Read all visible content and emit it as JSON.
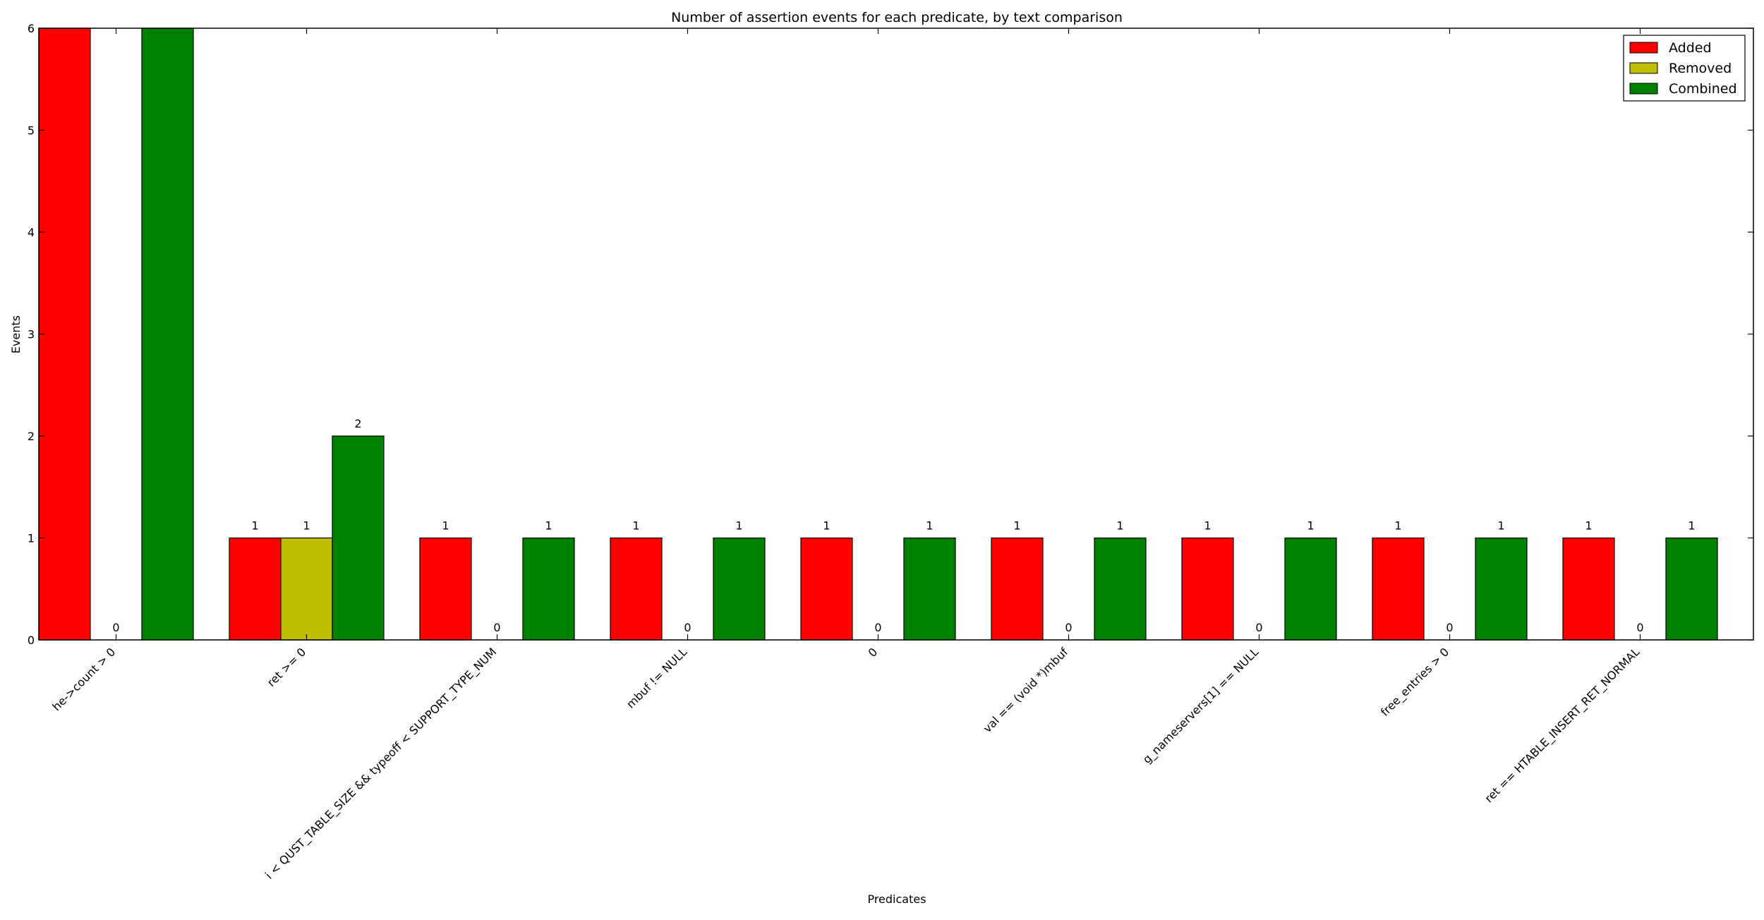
{
  "chart_data": {
    "type": "bar",
    "title": "Number of assertion events for each predicate, by text comparison",
    "xlabel": "Predicates",
    "ylabel": "Events",
    "ylim": [
      0,
      6
    ],
    "yticks": [
      0,
      1,
      2,
      3,
      4,
      5,
      6
    ],
    "categories": [
      "he->count > 0",
      "ret >= 0",
      "i < QUST_TABLE_SIZE && typeoff < SUPPORT_TYPE_NUM",
      "mbuf != NULL",
      "0",
      "val == (void *)mbuf",
      "g_nameservers[1] == NULL",
      "free_entries > 0",
      "ret == HTABLE_INSERT_RET_NORMAL"
    ],
    "series": [
      {
        "name": "Added",
        "color": "#ff0000",
        "values": [
          6,
          1,
          1,
          1,
          1,
          1,
          1,
          1,
          1
        ]
      },
      {
        "name": "Removed",
        "color": "#bfbf00",
        "values": [
          0,
          1,
          0,
          0,
          0,
          0,
          0,
          0,
          0
        ]
      },
      {
        "name": "Combined",
        "color": "#008000",
        "values": [
          6,
          2,
          1,
          1,
          1,
          1,
          1,
          1,
          1
        ]
      }
    ],
    "legend": "top-right",
    "grid": false
  }
}
